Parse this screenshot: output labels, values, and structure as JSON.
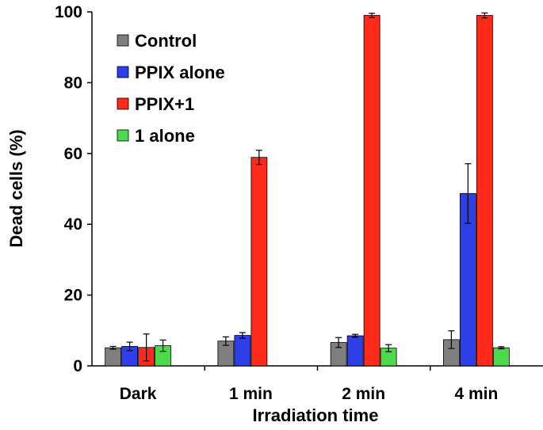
{
  "chart_data": {
    "type": "bar",
    "title": "",
    "xlabel": "Irradiation time",
    "ylabel": "Dead cells (%)",
    "ylim": [
      0,
      100
    ],
    "yticks": [
      0,
      20,
      40,
      60,
      80,
      100
    ],
    "categories": [
      "Dark",
      "1 min",
      "2 min",
      "4 min"
    ],
    "legend_position": "top-left",
    "grid": false,
    "series": [
      {
        "name": "Control",
        "color": "#7f7f7f",
        "values": [
          5.1,
          7.0,
          6.6,
          7.4
        ],
        "errors": [
          0.4,
          1.2,
          1.4,
          2.5
        ],
        "show": [
          true,
          true,
          true,
          true
        ]
      },
      {
        "name": "PPIX alone",
        "color": "#2f3fe8",
        "values": [
          5.5,
          8.6,
          8.5,
          48.7
        ],
        "errors": [
          1.2,
          0.8,
          0.4,
          8.4
        ],
        "show": [
          true,
          true,
          true,
          true
        ]
      },
      {
        "name": "PPIX+1",
        "color": "#ff2a1a",
        "values": [
          5.2,
          58.9,
          99.0,
          99.0
        ],
        "errors": [
          3.8,
          2.0,
          0.6,
          0.7
        ],
        "show": [
          true,
          true,
          true,
          true
        ]
      },
      {
        "name": "1 alone",
        "color": "#4cd94c",
        "values": [
          5.7,
          null,
          5.0,
          5.1
        ],
        "errors": [
          1.6,
          null,
          1.0,
          0.3
        ],
        "show": [
          true,
          false,
          true,
          true
        ]
      }
    ]
  }
}
